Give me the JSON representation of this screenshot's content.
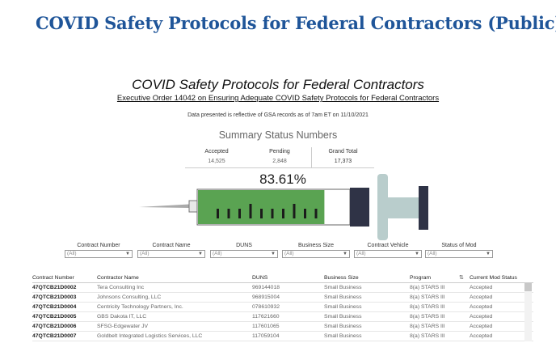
{
  "page_heading": "COVID Safety Protocols for Federal Contractors (Public)",
  "dashboard": {
    "title": "COVID Safety Protocols for Federal Contractors",
    "subtitle": "Executive Order 14042 on Ensuring Adequate COVID Safety Protocols for Federal Contractors",
    "note": "Data presented is reflective of GSA records as of 7am ET on 11/10/2021",
    "summary_title": "Summary Status Numbers"
  },
  "kpis": {
    "accepted_label": "Accepted",
    "accepted_value": "14,525",
    "pending_label": "Pending",
    "pending_value": "2,848",
    "total_label": "Grand Total",
    "total_value": "17,373"
  },
  "progress": {
    "label": "83.61%",
    "fraction": 0.8361
  },
  "colors": {
    "heading": "#1f5599",
    "barrel_fill": "#5aa352",
    "plunger": "#2f3346",
    "handle": "#b9cdcc"
  },
  "filters": [
    {
      "label": "Contract Number",
      "value": "(All)"
    },
    {
      "label": "Contract Name",
      "value": "(All)"
    },
    {
      "label": "DUNS",
      "value": "(All)"
    },
    {
      "label": "Business Size",
      "value": "(All)"
    },
    {
      "label": "Contract Vehicle",
      "value": "(All)"
    },
    {
      "label": "Status of Mod",
      "value": "(All)"
    }
  ],
  "table": {
    "headers": [
      "Contract Number",
      "Contractor Name",
      "DUNS",
      "Business Size",
      "Program",
      "Current Mod Status"
    ],
    "rows": [
      [
        "47QTCB21D0002",
        "Tera Consulting Inc",
        "969144018",
        "Small Business",
        "8(a) STARS III",
        "Accepted"
      ],
      [
        "47QTCB21D0003",
        "Johnsons Consulting, LLC",
        "968915004",
        "Small Business",
        "8(a) STARS III",
        "Accepted"
      ],
      [
        "47QTCB21D0004",
        "Centricity Technology Partners, Inc.",
        "078610932",
        "Small Business",
        "8(a) STARS III",
        "Accepted"
      ],
      [
        "47QTCB21D0005",
        "GBS Dakota IT, LLC",
        "117621660",
        "Small Business",
        "8(a) STARS III",
        "Accepted"
      ],
      [
        "47QTCB21D0006",
        "SFSG-Edgewater JV",
        "117601065",
        "Small Business",
        "8(a) STARS III",
        "Accepted"
      ],
      [
        "47QTCB21D0007",
        "Goldbelt Integrated Logistics Services, LLC",
        "117059104",
        "Small Business",
        "8(a) STARS III",
        "Accepted"
      ]
    ]
  }
}
